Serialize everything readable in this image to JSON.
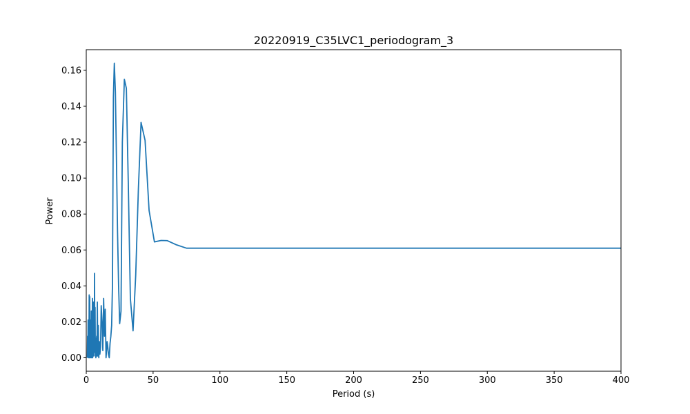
{
  "chart_data": {
    "type": "line",
    "title": "20220919_C35LVC1_periodogram_3",
    "xlabel": "Period (s)",
    "ylabel": "Power",
    "xlim": [
      0,
      400
    ],
    "ylim": [
      -0.0075,
      0.1715
    ],
    "xticks": [
      0,
      50,
      100,
      150,
      200,
      250,
      300,
      350,
      400
    ],
    "yticks": [
      0.0,
      0.02,
      0.04,
      0.06,
      0.08,
      0.1,
      0.12,
      0.14,
      0.16
    ],
    "xtick_labels": [
      "0",
      "50",
      "100",
      "150",
      "200",
      "250",
      "300",
      "350",
      "400"
    ],
    "ytick_labels": [
      "0.00",
      "0.02",
      "0.04",
      "0.06",
      "0.08",
      "0.10",
      "0.12",
      "0.14",
      "0.16"
    ],
    "grid": false,
    "line_color": "#1f77b4",
    "series": [
      {
        "x": [
          0.8,
          1.0,
          1.2,
          1.4,
          1.6,
          1.8,
          2.0,
          2.2,
          2.4,
          2.6,
          2.8,
          3.0,
          3.2,
          3.4,
          3.6,
          3.8,
          4.0,
          4.2,
          4.4,
          4.6,
          4.8,
          5.0,
          5.2,
          5.4,
          5.6,
          5.8,
          6.0,
          6.2,
          6.4,
          6.6,
          6.8,
          7.0,
          7.2,
          7.4,
          7.6,
          7.8,
          8.0,
          8.3,
          8.6,
          9.0,
          9.4,
          9.8,
          10.2,
          10.7,
          11.2,
          11.8,
          12.4,
          13.0,
          13.6,
          14.2,
          14.8,
          15.2,
          15.6,
          16.0,
          16.6,
          17.2,
          17.8,
          18.4,
          19.0,
          19.6,
          20.3,
          21.0,
          21.8,
          22.6,
          23.4,
          24.2,
          25.0,
          26.0,
          27.0,
          28.5,
          30.0,
          31.5,
          33.0,
          35.0,
          37.0,
          39.0,
          41.0,
          44.0,
          47.0,
          51.0,
          56.0,
          60.5,
          67.0,
          75.0,
          85.0,
          99.0,
          116.0,
          143.0,
          182.0,
          255.0,
          400.0
        ],
        "y": [
          0.0,
          0.012,
          0.001,
          0.021,
          0.0,
          0.018,
          0.002,
          0.035,
          0.0,
          0.034,
          0.001,
          0.016,
          0.0,
          0.021,
          0.001,
          0.026,
          0.0,
          0.015,
          0.001,
          0.033,
          0.0,
          0.022,
          0.002,
          0.031,
          0.001,
          0.018,
          0.003,
          0.047,
          0.004,
          0.028,
          0.001,
          0.011,
          0.0,
          0.009,
          0.002,
          0.012,
          0.001,
          0.031,
          0.001,
          0.018,
          0.0,
          0.009,
          0.002,
          0.006,
          0.029,
          0.02,
          0.004,
          0.033,
          0.012,
          0.027,
          0.0,
          0.004,
          0.009,
          0.007,
          0.002,
          0.0,
          0.008,
          0.012,
          0.018,
          0.04,
          0.145,
          0.164,
          0.148,
          0.11,
          0.07,
          0.04,
          0.019,
          0.026,
          0.12,
          0.155,
          0.15,
          0.095,
          0.033,
          0.015,
          0.046,
          0.094,
          0.131,
          0.121,
          0.082,
          0.0645,
          0.0653,
          0.0652,
          0.063,
          0.061,
          0.061,
          0.061,
          0.061,
          0.061,
          0.061,
          0.061,
          0.061
        ]
      }
    ]
  }
}
